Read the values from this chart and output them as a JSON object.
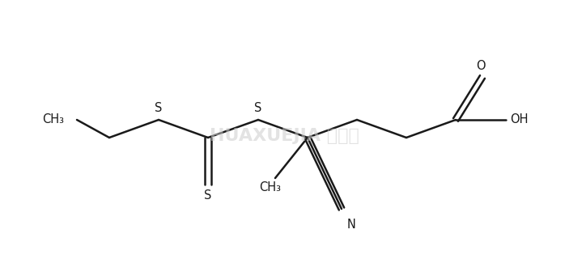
{
  "bg_color": "#ffffff",
  "line_color": "#1a1a1a",
  "text_color": "#1a1a1a",
  "lw": 1.8,
  "figsize": [
    7.03,
    3.36
  ],
  "dpi": 100,
  "watermark_text": "HUAXUEJIA 化学加",
  "watermark_color": "#cccccc",
  "label_CH3_left": "CH₃",
  "label_S1": "S",
  "label_S2": "S",
  "label_S_thione": "S",
  "label_O": "O",
  "label_OH": "OH",
  "label_CH3_quat": "CH₃",
  "label_N": "N",
  "font_size": 10.5
}
